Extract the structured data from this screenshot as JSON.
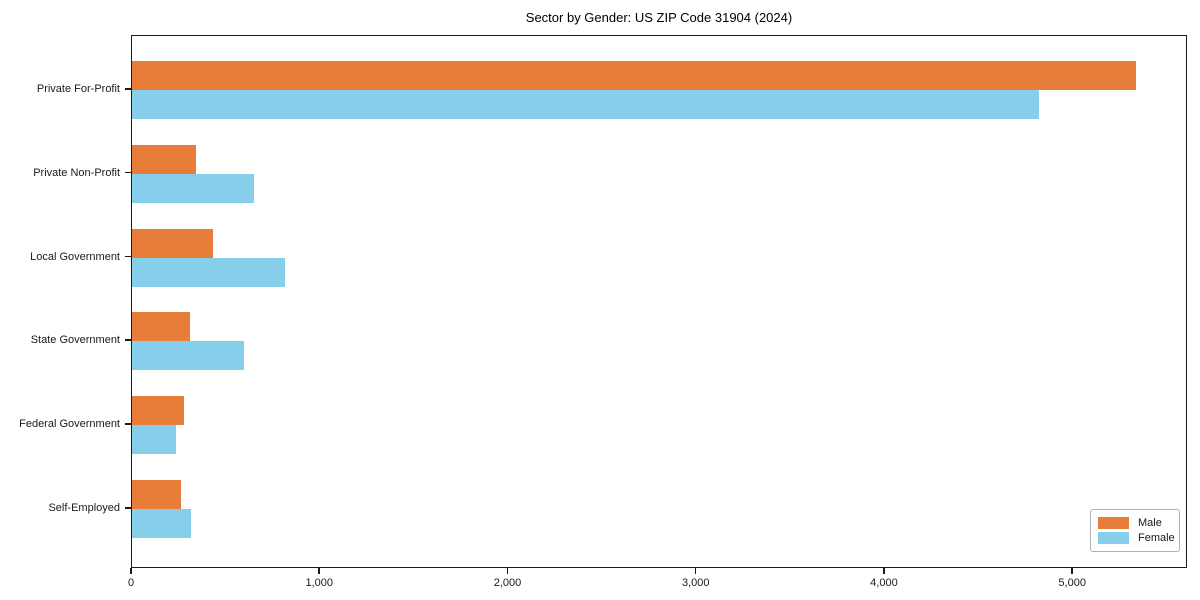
{
  "chart_data": {
    "type": "bar",
    "orientation": "horizontal",
    "title": "Sector by Gender: US ZIP Code 31904 (2024)",
    "categories": [
      "Private For-Profit",
      "Private Non-Profit",
      "Local Government",
      "State Government",
      "Federal Government",
      "Self-Employed"
    ],
    "series": [
      {
        "name": "Male",
        "color": "#e87d3a",
        "values": [
          5335,
          340,
          430,
          310,
          275,
          260
        ]
      },
      {
        "name": "Female",
        "color": "#87ceeb",
        "values": [
          4820,
          650,
          815,
          595,
          235,
          315
        ]
      }
    ],
    "xlabel": "",
    "ylabel": "",
    "xlim": [
      0,
      5610
    ],
    "x_ticks": [
      0,
      1000,
      2000,
      3000,
      4000,
      5000
    ],
    "x_tick_labels": [
      "0",
      "1,000",
      "2,000",
      "3,000",
      "4,000",
      "5,000"
    ],
    "legend_position": "lower right",
    "grid": false,
    "background_color": "#ffffff",
    "text_color": "#1a1a1a"
  }
}
